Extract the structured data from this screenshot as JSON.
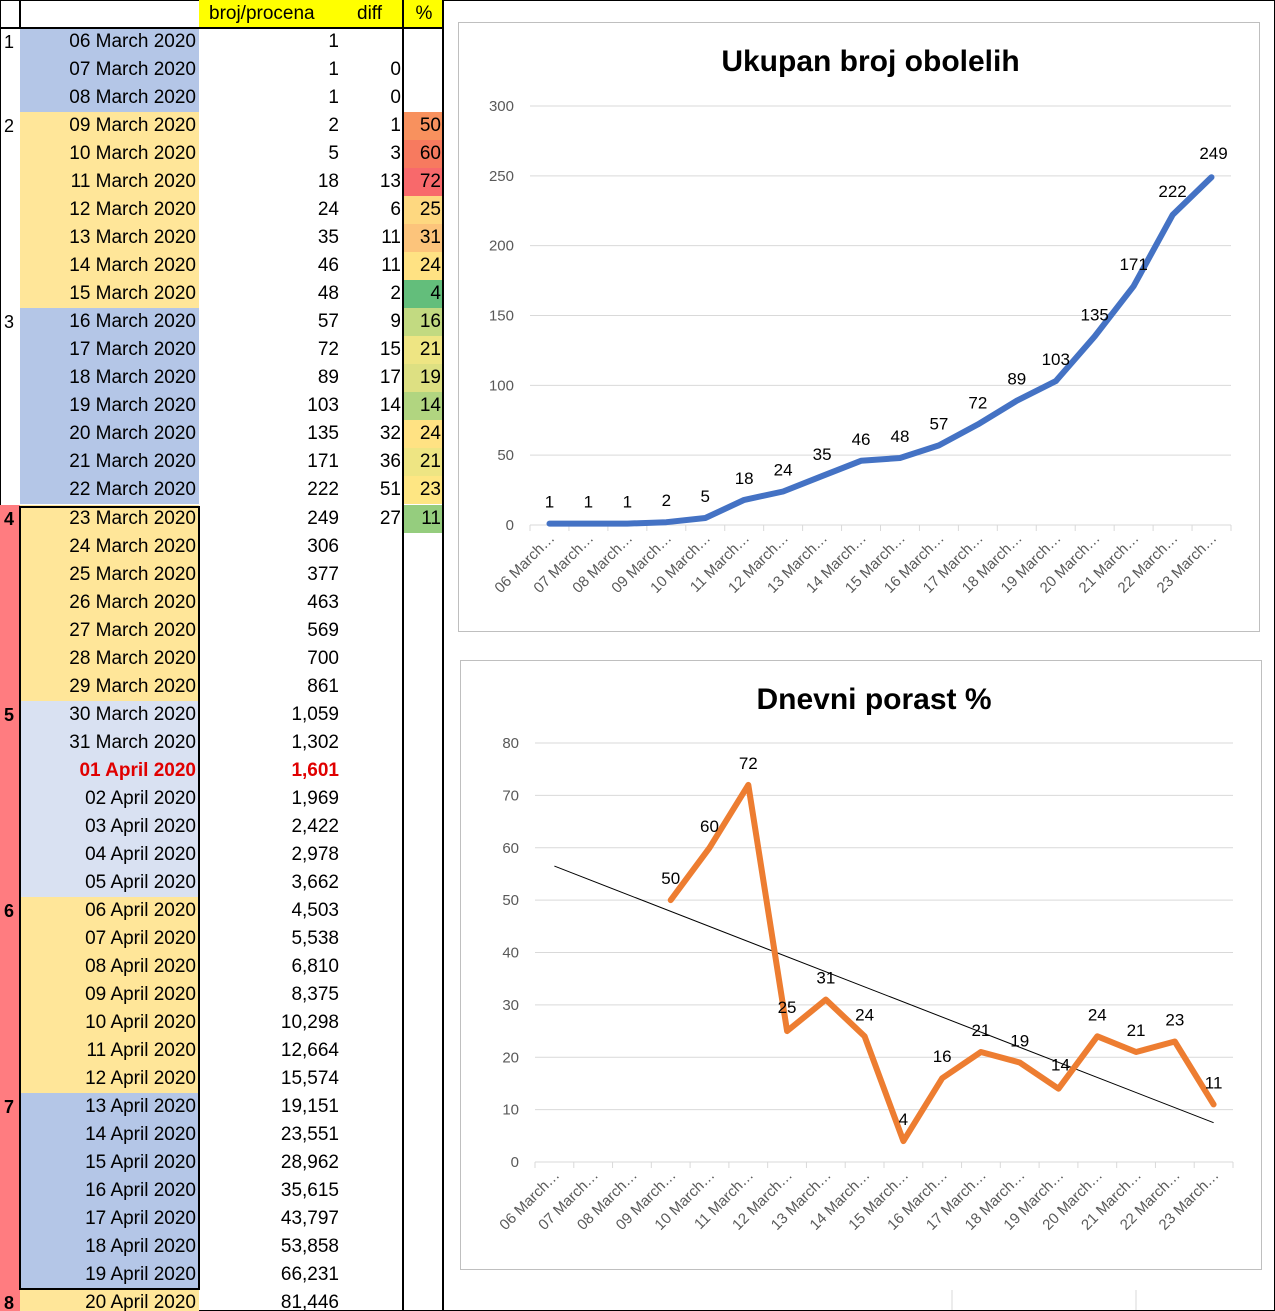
{
  "sheet": {
    "headers": {
      "count": "broj/procena",
      "diff": "diff",
      "pct": "%"
    },
    "colors": {
      "blue": "#b4c6e7",
      "yellow": "#ffe699",
      "lightblue": "#d9e1f2",
      "weekRed": "#ff7c80",
      "highlightRed": "#e00000"
    },
    "rows": [
      {
        "week": "1",
        "date": "06 March 2020",
        "count": "1",
        "diff": "",
        "pct": "",
        "band": "blue"
      },
      {
        "week": "",
        "date": "07 March 2020",
        "count": "1",
        "diff": "0",
        "pct": "",
        "band": "blue"
      },
      {
        "week": "",
        "date": "08 March 2020",
        "count": "1",
        "diff": "0",
        "pct": "",
        "band": "blue"
      },
      {
        "week": "2",
        "date": "09 March 2020",
        "count": "2",
        "diff": "1",
        "pct": "50",
        "pctColor": "#f8915e",
        "band": "yellow"
      },
      {
        "week": "",
        "date": "10 March 2020",
        "count": "5",
        "diff": "3",
        "pct": "60",
        "pctColor": "#f77a5f",
        "band": "yellow"
      },
      {
        "week": "",
        "date": "11 March 2020",
        "count": "18",
        "diff": "13",
        "pct": "72",
        "pctColor": "#f8696b",
        "band": "yellow"
      },
      {
        "week": "",
        "date": "12 March 2020",
        "count": "24",
        "diff": "6",
        "pct": "25",
        "pctColor": "#fed880",
        "band": "yellow"
      },
      {
        "week": "",
        "date": "13 March 2020",
        "count": "35",
        "diff": "11",
        "pct": "31",
        "pctColor": "#fcc47b",
        "band": "yellow"
      },
      {
        "week": "",
        "date": "14 March 2020",
        "count": "46",
        "diff": "11",
        "pct": "24",
        "pctColor": "#ffe283",
        "band": "yellow"
      },
      {
        "week": "",
        "date": "15 March 2020",
        "count": "48",
        "diff": "2",
        "pct": "4",
        "pctColor": "#63be7b",
        "band": "yellow"
      },
      {
        "week": "3",
        "date": "16 March 2020",
        "count": "57",
        "diff": "9",
        "pct": "16",
        "pctColor": "#c2da81",
        "band": "blue"
      },
      {
        "week": "",
        "date": "17 March 2020",
        "count": "72",
        "diff": "15",
        "pct": "21",
        "pctColor": "#eee583",
        "band": "blue"
      },
      {
        "week": "",
        "date": "18 March 2020",
        "count": "89",
        "diff": "17",
        "pct": "19",
        "pctColor": "#dde082",
        "band": "blue"
      },
      {
        "week": "",
        "date": "19 March 2020",
        "count": "103",
        "diff": "14",
        "pct": "14",
        "pctColor": "#b1d580",
        "band": "blue"
      },
      {
        "week": "",
        "date": "20 March 2020",
        "count": "135",
        "diff": "32",
        "pct": "24",
        "pctColor": "#ffe283",
        "band": "blue"
      },
      {
        "week": "",
        "date": "21 March 2020",
        "count": "171",
        "diff": "36",
        "pct": "21",
        "pctColor": "#eee583",
        "band": "blue"
      },
      {
        "week": "",
        "date": "22 March 2020",
        "count": "222",
        "diff": "51",
        "pct": "23",
        "pctColor": "#fee683",
        "band": "blue"
      },
      {
        "week": "4",
        "date": "23 March 2020",
        "count": "249",
        "diff": "27",
        "pct": "11",
        "pctColor": "#95cd7e",
        "band": "yellow"
      },
      {
        "week": "",
        "date": "24 March 2020",
        "count": "306",
        "diff": "",
        "pct": "",
        "band": "yellow"
      },
      {
        "week": "",
        "date": "25 March 2020",
        "count": "377",
        "diff": "",
        "pct": "",
        "band": "yellow"
      },
      {
        "week": "",
        "date": "26 March 2020",
        "count": "463",
        "diff": "",
        "pct": "",
        "band": "yellow"
      },
      {
        "week": "",
        "date": "27 March 2020",
        "count": "569",
        "diff": "",
        "pct": "",
        "band": "yellow"
      },
      {
        "week": "",
        "date": "28 March 2020",
        "count": "700",
        "diff": "",
        "pct": "",
        "band": "yellow"
      },
      {
        "week": "",
        "date": "29 March 2020",
        "count": "861",
        "diff": "",
        "pct": "",
        "band": "yellow"
      },
      {
        "week": "5",
        "date": "30 March 2020",
        "count": "1,059",
        "diff": "",
        "pct": "",
        "band": "lightblue"
      },
      {
        "week": "",
        "date": "31 March 2020",
        "count": "1,302",
        "diff": "",
        "pct": "",
        "band": "lightblue"
      },
      {
        "week": "",
        "date": "01 April 2020",
        "count": "1,601",
        "diff": "",
        "pct": "",
        "band": "lightblue",
        "highlight": true
      },
      {
        "week": "",
        "date": "02 April 2020",
        "count": "1,969",
        "diff": "",
        "pct": "",
        "band": "lightblue"
      },
      {
        "week": "",
        "date": "03 April 2020",
        "count": "2,422",
        "diff": "",
        "pct": "",
        "band": "lightblue"
      },
      {
        "week": "",
        "date": "04 April 2020",
        "count": "2,978",
        "diff": "",
        "pct": "",
        "band": "lightblue"
      },
      {
        "week": "",
        "date": "05 April 2020",
        "count": "3,662",
        "diff": "",
        "pct": "",
        "band": "lightblue"
      },
      {
        "week": "6",
        "date": "06 April 2020",
        "count": "4,503",
        "diff": "",
        "pct": "",
        "band": "yellow"
      },
      {
        "week": "",
        "date": "07 April 2020",
        "count": "5,538",
        "diff": "",
        "pct": "",
        "band": "yellow"
      },
      {
        "week": "",
        "date": "08 April 2020",
        "count": "6,810",
        "diff": "",
        "pct": "",
        "band": "yellow"
      },
      {
        "week": "",
        "date": "09 April 2020",
        "count": "8,375",
        "diff": "",
        "pct": "",
        "band": "yellow"
      },
      {
        "week": "",
        "date": "10 April 2020",
        "count": "10,298",
        "diff": "",
        "pct": "",
        "band": "yellow"
      },
      {
        "week": "",
        "date": "11 April 2020",
        "count": "12,664",
        "diff": "",
        "pct": "",
        "band": "yellow"
      },
      {
        "week": "",
        "date": "12 April 2020",
        "count": "15,574",
        "diff": "",
        "pct": "",
        "band": "yellow"
      },
      {
        "week": "7",
        "date": "13 April 2020",
        "count": "19,151",
        "diff": "",
        "pct": "",
        "band": "blue"
      },
      {
        "week": "",
        "date": "14 April 2020",
        "count": "23,551",
        "diff": "",
        "pct": "",
        "band": "blue"
      },
      {
        "week": "",
        "date": "15 April 2020",
        "count": "28,962",
        "diff": "",
        "pct": "",
        "band": "blue"
      },
      {
        "week": "",
        "date": "16 April 2020",
        "count": "35,615",
        "diff": "",
        "pct": "",
        "band": "blue"
      },
      {
        "week": "",
        "date": "17 April 2020",
        "count": "43,797",
        "diff": "",
        "pct": "",
        "band": "blue"
      },
      {
        "week": "",
        "date": "18 April 2020",
        "count": "53,858",
        "diff": "",
        "pct": "",
        "band": "blue"
      },
      {
        "week": "",
        "date": "19 April 2020",
        "count": "66,231",
        "diff": "",
        "pct": "",
        "band": "blue"
      },
      {
        "week": "8",
        "date": "20 April 2020",
        "count": "81,446",
        "diff": "",
        "pct": "",
        "band": "yellow"
      }
    ]
  },
  "chart_data": [
    {
      "type": "line",
      "title": "Ukupan broj obolelih",
      "xlabel": "",
      "ylabel": "",
      "categories": [
        "06 March…",
        "07 March…",
        "08 March…",
        "09 March…",
        "10 March…",
        "11 March…",
        "12 March…",
        "13 March…",
        "14 March…",
        "15 March…",
        "16 March…",
        "17 March…",
        "18 March…",
        "19 March…",
        "20 March…",
        "21 March…",
        "22 March…",
        "23 March…"
      ],
      "series": [
        {
          "values": [
            1,
            1,
            1,
            2,
            5,
            18,
            24,
            35,
            46,
            48,
            57,
            72,
            89,
            103,
            135,
            171,
            222,
            249
          ],
          "color": "#4472c4"
        }
      ],
      "yticks": [
        0,
        50,
        100,
        150,
        200,
        250,
        300
      ],
      "ylim": [
        0,
        300
      ],
      "grid": true,
      "legend": "none"
    },
    {
      "type": "line",
      "title": "Dnevni porast %",
      "xlabel": "",
      "ylabel": "",
      "categories": [
        "06 March…",
        "07 March…",
        "08 March…",
        "09 March…",
        "10 March…",
        "11 March…",
        "12 March…",
        "13 March…",
        "14 March…",
        "15 March…",
        "16 March…",
        "17 March…",
        "18 March…",
        "19 March…",
        "20 March…",
        "21 March…",
        "22 March…",
        "23 March…"
      ],
      "series": [
        {
          "values": [
            null,
            null,
            null,
            50,
            60,
            72,
            25,
            31,
            24,
            4,
            16,
            21,
            19,
            14,
            24,
            21,
            23,
            11
          ],
          "color": "#ed7d31"
        }
      ],
      "trendline": {
        "type": "linear",
        "start": 56.5,
        "end": 7.5,
        "color": "#000000"
      },
      "yticks": [
        0,
        10,
        20,
        30,
        40,
        50,
        60,
        70,
        80
      ],
      "ylim": [
        0,
        80
      ],
      "grid": true,
      "legend": "none"
    }
  ]
}
